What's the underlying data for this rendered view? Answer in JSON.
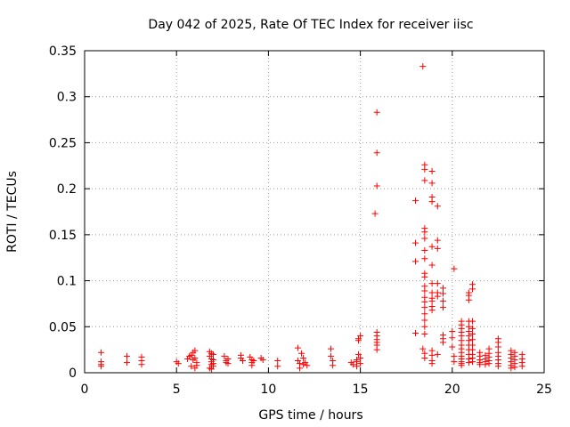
{
  "chart_data": {
    "type": "scatter",
    "title": "Day 042 of 2025, Rate Of TEC Index for receiver iisc",
    "xlabel": "GPS time / hours",
    "ylabel": "ROTI / TECUs",
    "xlim": [
      0,
      25
    ],
    "ylim": [
      0,
      0.35
    ],
    "xticks": [
      0,
      5,
      10,
      15,
      20,
      25
    ],
    "yticks": [
      0,
      0.05,
      0.1,
      0.15,
      0.2,
      0.25,
      0.3,
      0.35
    ],
    "xtick_labels": [
      "0",
      "5",
      "10",
      "15",
      "20",
      "25"
    ],
    "ytick_labels": [
      "0",
      "0.05",
      "0.1",
      "0.15",
      "0.2",
      "0.25",
      "0.3",
      "0.35"
    ],
    "grid": true,
    "marker": "+",
    "color": "#ff0000",
    "series": [
      {
        "name": "ROTI",
        "points": [
          [
            0.9,
            0.022
          ],
          [
            0.9,
            0.012
          ],
          [
            0.9,
            0.009
          ],
          [
            0.9,
            0.007
          ],
          [
            2.3,
            0.018
          ],
          [
            2.3,
            0.011
          ],
          [
            3.1,
            0.017
          ],
          [
            3.1,
            0.013
          ],
          [
            3.1,
            0.009
          ],
          [
            5.0,
            0.012
          ],
          [
            5.1,
            0.01
          ],
          [
            5.6,
            0.015
          ],
          [
            5.7,
            0.018
          ],
          [
            5.8,
            0.019
          ],
          [
            5.9,
            0.022
          ],
          [
            5.9,
            0.014
          ],
          [
            6.0,
            0.024
          ],
          [
            6.0,
            0.016
          ],
          [
            6.1,
            0.011
          ],
          [
            6.1,
            0.008
          ],
          [
            6.0,
            0.005
          ],
          [
            5.8,
            0.007
          ],
          [
            6.8,
            0.023
          ],
          [
            6.8,
            0.018
          ],
          [
            6.9,
            0.021
          ],
          [
            6.9,
            0.015
          ],
          [
            6.9,
            0.012
          ],
          [
            6.9,
            0.009
          ],
          [
            7.0,
            0.02
          ],
          [
            7.0,
            0.014
          ],
          [
            7.0,
            0.01
          ],
          [
            7.0,
            0.007
          ],
          [
            6.8,
            0.005
          ],
          [
            6.9,
            0.004
          ],
          [
            7.6,
            0.018
          ],
          [
            7.7,
            0.013
          ],
          [
            7.7,
            0.011
          ],
          [
            7.8,
            0.015
          ],
          [
            7.8,
            0.01
          ],
          [
            8.5,
            0.019
          ],
          [
            8.5,
            0.016
          ],
          [
            8.6,
            0.013
          ],
          [
            9.0,
            0.017
          ],
          [
            9.1,
            0.014
          ],
          [
            9.1,
            0.011
          ],
          [
            9.1,
            0.008
          ],
          [
            9.2,
            0.013
          ],
          [
            9.6,
            0.016
          ],
          [
            9.7,
            0.014
          ],
          [
            10.5,
            0.013
          ],
          [
            10.5,
            0.007
          ],
          [
            11.6,
            0.027
          ],
          [
            11.6,
            0.013
          ],
          [
            11.7,
            0.01
          ],
          [
            11.8,
            0.021
          ],
          [
            11.9,
            0.016
          ],
          [
            11.9,
            0.009
          ],
          [
            12.0,
            0.011
          ],
          [
            12.1,
            0.008
          ],
          [
            11.7,
            0.005
          ],
          [
            13.4,
            0.026
          ],
          [
            13.4,
            0.018
          ],
          [
            13.5,
            0.013
          ],
          [
            13.5,
            0.008
          ],
          [
            14.5,
            0.011
          ],
          [
            14.6,
            0.009
          ],
          [
            14.8,
            0.014
          ],
          [
            14.8,
            0.012
          ],
          [
            14.9,
            0.037
          ],
          [
            14.9,
            0.035
          ],
          [
            15.0,
            0.04
          ],
          [
            14.9,
            0.02
          ],
          [
            15.0,
            0.016
          ],
          [
            15.0,
            0.01
          ],
          [
            14.8,
            0.007
          ],
          [
            15.8,
            0.173
          ],
          [
            15.9,
            0.283
          ],
          [
            15.9,
            0.239
          ],
          [
            15.9,
            0.203
          ],
          [
            15.9,
            0.044
          ],
          [
            15.9,
            0.04
          ],
          [
            15.9,
            0.036
          ],
          [
            15.9,
            0.033
          ],
          [
            15.9,
            0.03
          ],
          [
            15.9,
            0.025
          ],
          [
            18.0,
            0.187
          ],
          [
            18.0,
            0.141
          ],
          [
            18.0,
            0.121
          ],
          [
            18.0,
            0.043
          ],
          [
            18.4,
            0.333
          ],
          [
            18.5,
            0.226
          ],
          [
            18.5,
            0.221
          ],
          [
            18.5,
            0.209
          ],
          [
            18.5,
            0.157
          ],
          [
            18.5,
            0.153
          ],
          [
            18.5,
            0.146
          ],
          [
            18.5,
            0.133
          ],
          [
            18.5,
            0.124
          ],
          [
            18.5,
            0.108
          ],
          [
            18.5,
            0.104
          ],
          [
            18.5,
            0.094
          ],
          [
            18.5,
            0.089
          ],
          [
            18.5,
            0.082
          ],
          [
            18.5,
            0.077
          ],
          [
            18.5,
            0.071
          ],
          [
            18.5,
            0.064
          ],
          [
            18.5,
            0.057
          ],
          [
            18.5,
            0.05
          ],
          [
            18.5,
            0.042
          ],
          [
            18.4,
            0.026
          ],
          [
            18.5,
            0.021
          ],
          [
            18.5,
            0.016
          ],
          [
            18.9,
            0.219
          ],
          [
            18.9,
            0.206
          ],
          [
            18.9,
            0.191
          ],
          [
            18.9,
            0.186
          ],
          [
            18.9,
            0.137
          ],
          [
            18.9,
            0.117
          ],
          [
            18.9,
            0.097
          ],
          [
            18.9,
            0.087
          ],
          [
            18.9,
            0.081
          ],
          [
            18.9,
            0.078
          ],
          [
            18.9,
            0.072
          ],
          [
            18.9,
            0.068
          ],
          [
            18.9,
            0.024
          ],
          [
            18.9,
            0.019
          ],
          [
            18.9,
            0.013
          ],
          [
            18.9,
            0.01
          ],
          [
            19.2,
            0.181
          ],
          [
            19.2,
            0.144
          ],
          [
            19.2,
            0.135
          ],
          [
            19.2,
            0.097
          ],
          [
            19.2,
            0.087
          ],
          [
            19.2,
            0.083
          ],
          [
            19.2,
            0.02
          ],
          [
            19.5,
            0.092
          ],
          [
            19.5,
            0.086
          ],
          [
            19.5,
            0.078
          ],
          [
            19.5,
            0.071
          ],
          [
            19.5,
            0.041
          ],
          [
            19.5,
            0.037
          ],
          [
            19.5,
            0.033
          ],
          [
            20.1,
            0.113
          ],
          [
            20.0,
            0.045
          ],
          [
            20.0,
            0.038
          ],
          [
            20.0,
            0.028
          ],
          [
            20.1,
            0.018
          ],
          [
            20.1,
            0.012
          ],
          [
            20.5,
            0.056
          ],
          [
            20.5,
            0.052
          ],
          [
            20.5,
            0.048
          ],
          [
            20.5,
            0.044
          ],
          [
            20.5,
            0.04
          ],
          [
            20.5,
            0.035
          ],
          [
            20.5,
            0.03
          ],
          [
            20.5,
            0.026
          ],
          [
            20.5,
            0.022
          ],
          [
            20.5,
            0.018
          ],
          [
            20.5,
            0.015
          ],
          [
            20.5,
            0.012
          ],
          [
            20.5,
            0.01
          ],
          [
            20.5,
            0.008
          ],
          [
            20.9,
            0.087
          ],
          [
            20.9,
            0.084
          ],
          [
            20.9,
            0.079
          ],
          [
            20.9,
            0.056
          ],
          [
            20.9,
            0.05
          ],
          [
            20.9,
            0.045
          ],
          [
            20.9,
            0.04
          ],
          [
            20.9,
            0.035
          ],
          [
            20.9,
            0.03
          ],
          [
            20.9,
            0.025
          ],
          [
            20.9,
            0.02
          ],
          [
            20.9,
            0.015
          ],
          [
            20.9,
            0.011
          ],
          [
            21.1,
            0.096
          ],
          [
            21.1,
            0.091
          ],
          [
            21.1,
            0.056
          ],
          [
            21.1,
            0.048
          ],
          [
            21.1,
            0.042
          ],
          [
            21.1,
            0.036
          ],
          [
            21.1,
            0.03
          ],
          [
            21.1,
            0.025
          ],
          [
            21.1,
            0.02
          ],
          [
            21.1,
            0.016
          ],
          [
            21.1,
            0.012
          ],
          [
            21.5,
            0.022
          ],
          [
            21.5,
            0.018
          ],
          [
            21.5,
            0.014
          ],
          [
            21.5,
            0.011
          ],
          [
            21.5,
            0.009
          ],
          [
            21.8,
            0.019
          ],
          [
            21.8,
            0.015
          ],
          [
            21.8,
            0.012
          ],
          [
            21.8,
            0.009
          ],
          [
            22.0,
            0.026
          ],
          [
            22.0,
            0.021
          ],
          [
            22.0,
            0.017
          ],
          [
            22.0,
            0.013
          ],
          [
            22.0,
            0.01
          ],
          [
            22.5,
            0.037
          ],
          [
            22.5,
            0.033
          ],
          [
            22.5,
            0.028
          ],
          [
            22.5,
            0.022
          ],
          [
            22.5,
            0.018
          ],
          [
            22.5,
            0.014
          ],
          [
            22.5,
            0.01
          ],
          [
            22.5,
            0.007
          ],
          [
            23.2,
            0.024
          ],
          [
            23.2,
            0.02
          ],
          [
            23.2,
            0.016
          ],
          [
            23.2,
            0.012
          ],
          [
            23.2,
            0.008
          ],
          [
            23.2,
            0.005
          ],
          [
            23.4,
            0.022
          ],
          [
            23.4,
            0.018
          ],
          [
            23.4,
            0.014
          ],
          [
            23.4,
            0.01
          ],
          [
            23.4,
            0.006
          ],
          [
            23.8,
            0.02
          ],
          [
            23.8,
            0.015
          ],
          [
            23.8,
            0.011
          ],
          [
            23.8,
            0.007
          ]
        ]
      }
    ]
  }
}
